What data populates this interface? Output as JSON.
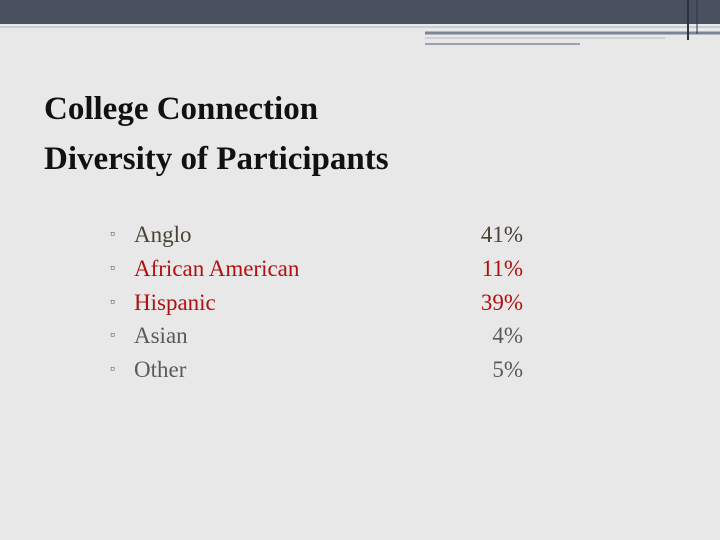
{
  "header": {
    "title_lines": [
      "College Connection",
      "Diversity of Participants"
    ]
  },
  "items": [
    {
      "label": "Anglo",
      "value": "41%",
      "color": "#4a4338"
    },
    {
      "label": "African American",
      "value": "11%",
      "color": "#b01010"
    },
    {
      "label": "Hispanic",
      "value": "39%",
      "color": "#b01010"
    },
    {
      "label": "Asian",
      "value": "4%",
      "color": "#5a5a5a"
    },
    {
      "label": "Other",
      "value": "5%",
      "color": "#5a5a5a"
    }
  ]
}
